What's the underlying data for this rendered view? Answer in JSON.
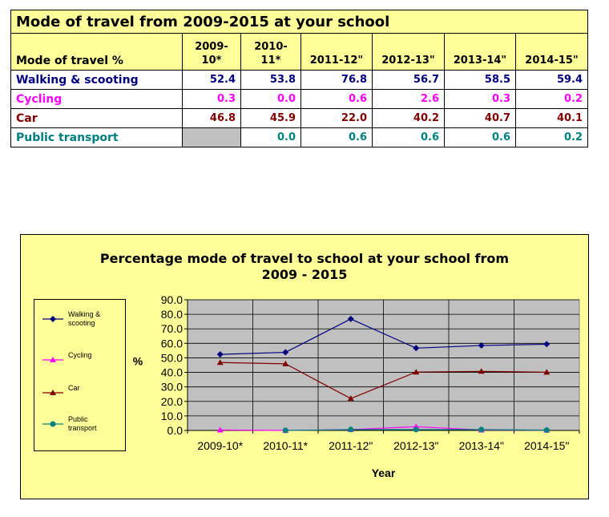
{
  "table": {
    "title": "Mode of travel from 2009-2015 at your school",
    "mode_label": "Mode of travel %",
    "headers": [
      [
        "2009-",
        "10*"
      ],
      [
        "2010-",
        "11*"
      ],
      [
        "2011-12\""
      ],
      [
        "2012-13\""
      ],
      [
        "2013-14\""
      ],
      [
        "2014-15\""
      ]
    ],
    "rows": [
      {
        "label": "Walking & scooting",
        "color": "#000080",
        "values": [
          "52.4",
          "53.8",
          "76.8",
          "56.7",
          "58.5",
          "59.4"
        ]
      },
      {
        "label": "Cycling",
        "color": "#ff00ff",
        "values": [
          "0.3",
          "0.0",
          "0.6",
          "2.6",
          "0.3",
          "0.2"
        ]
      },
      {
        "label": "Car",
        "color": "#800000",
        "values": [
          "46.8",
          "45.9",
          "22.0",
          "40.2",
          "40.7",
          "40.1"
        ]
      },
      {
        "label": "Public transport",
        "color": "#008080",
        "values": [
          "",
          "0.0",
          "0.6",
          "0.6",
          "0.6",
          "0.2"
        ]
      }
    ]
  },
  "chart_data": {
    "type": "line",
    "title": "Percentage mode of travel to school at your school from 2009 - 2015",
    "title_lines": [
      "Percentage mode of travel to school at your school from",
      "2009 - 2015"
    ],
    "xlabel": "Year",
    "ylabel": "%",
    "categories": [
      "2009-10*",
      "2010-11*",
      "2011-12\"",
      "2012-13\"",
      "2013-14\"",
      "2014-15\""
    ],
    "ylim": [
      0,
      90
    ],
    "yticks": [
      "0.0",
      "10.0",
      "20.0",
      "30.0",
      "40.0",
      "50.0",
      "60.0",
      "70.0",
      "80.0",
      "90.0"
    ],
    "grid": true,
    "legend_position": "left",
    "series": [
      {
        "name": "Walking & scooting",
        "legend_lines": [
          "Walking &",
          "scooting"
        ],
        "color": "#000080",
        "marker": "diamond",
        "values": [
          52.4,
          53.8,
          76.8,
          56.7,
          58.5,
          59.4
        ]
      },
      {
        "name": "Cycling",
        "legend_lines": [
          "Cycling"
        ],
        "color": "#ff00ff",
        "marker": "triangle",
        "values": [
          0.3,
          0.0,
          0.6,
          2.6,
          0.3,
          0.2
        ]
      },
      {
        "name": "Car",
        "legend_lines": [
          "Car"
        ],
        "color": "#800000",
        "marker": "triangle",
        "values": [
          46.8,
          45.9,
          22.0,
          40.2,
          40.7,
          40.1
        ]
      },
      {
        "name": "Public transport",
        "legend_lines": [
          "Public",
          "transport"
        ],
        "color": "#008080",
        "marker": "circle",
        "values": [
          null,
          0.0,
          0.6,
          0.6,
          0.6,
          0.2
        ]
      }
    ],
    "plot_bg": "#c0c0c0",
    "chart_bg": "#ffff99"
  }
}
